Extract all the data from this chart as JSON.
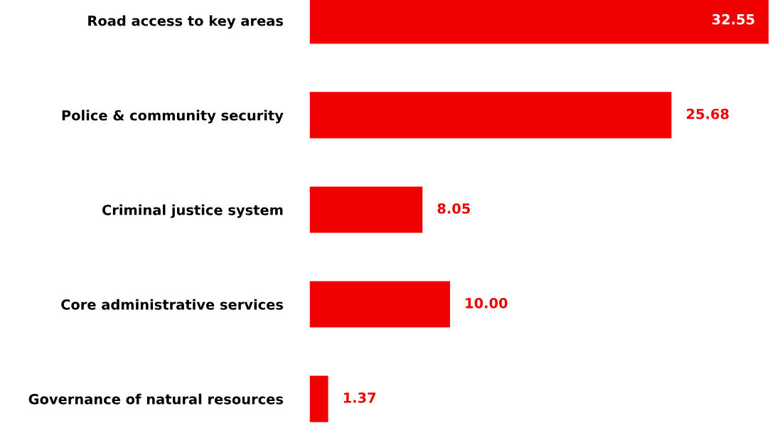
{
  "chart_data": {
    "type": "bar",
    "orientation": "horizontal",
    "categories": [
      "Road access to key areas",
      "Police & community security",
      "Criminal justice system",
      "Core administrative services",
      "Governance of natural resources"
    ],
    "values": [
      32.55,
      25.68,
      8.05,
      10.0,
      1.37
    ],
    "value_labels": [
      "32.55",
      "25.68",
      "8.05",
      "10.00",
      "1.37"
    ],
    "color": "#f00000"
  }
}
